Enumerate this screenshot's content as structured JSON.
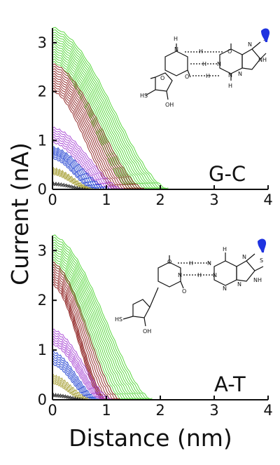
{
  "chart_data": [
    {
      "type": "line",
      "panel_label": "G-C",
      "xlim": [
        0,
        4
      ],
      "ylim": [
        0,
        3.3
      ],
      "xticks": [
        "0",
        "1",
        "2",
        "3",
        "4"
      ],
      "yticks": [
        "0",
        "1",
        "2",
        "3"
      ],
      "grid": false,
      "series": [
        {
          "color": "#4ad52e",
          "start_values": [
            3.3,
            3.25,
            3.2,
            3.15,
            3.1,
            3.05,
            3.0,
            2.95,
            2.9,
            2.85,
            2.8,
            2.75,
            2.7,
            2.65,
            2.6
          ],
          "end_x": [
            2.15,
            2.1,
            2.05,
            2.0,
            1.95,
            1.9,
            1.85,
            1.8,
            1.75,
            1.7,
            1.65,
            1.6,
            1.55,
            1.5,
            1.45
          ]
        },
        {
          "color": "#8b1a1a",
          "start_values": [
            2.55,
            2.5,
            2.45,
            2.4,
            2.35,
            2.3,
            2.25,
            2.2,
            2.15,
            2.1,
            2.05,
            2.0
          ],
          "end_x": [
            1.7,
            1.65,
            1.6,
            1.55,
            1.5,
            1.45,
            1.4,
            1.35,
            1.3,
            1.25,
            1.2,
            1.15
          ]
        },
        {
          "color": "#a642d4",
          "start_values": [
            1.25,
            1.2,
            1.15,
            1.1,
            1.05,
            1.0,
            0.95
          ],
          "end_x": [
            1.3,
            1.25,
            1.2,
            1.15,
            1.1,
            1.05,
            1.0
          ]
        },
        {
          "color": "#1e3fd0",
          "start_values": [
            0.85,
            0.82,
            0.79,
            0.76,
            0.73,
            0.7,
            0.66,
            0.62
          ],
          "end_x": [
            1.05,
            1.0,
            0.95,
            0.9,
            0.85,
            0.82,
            0.78,
            0.75
          ]
        },
        {
          "color": "#a9a23a",
          "start_values": [
            0.42,
            0.39,
            0.36,
            0.33,
            0.3
          ],
          "end_x": [
            0.75,
            0.72,
            0.69,
            0.66,
            0.63
          ]
        },
        {
          "color": "#333333",
          "start_values": [
            0.12,
            0.1,
            0.08
          ],
          "end_x": [
            0.65,
            0.6,
            0.55
          ]
        }
      ]
    },
    {
      "type": "line",
      "panel_label": "A-T",
      "xlim": [
        0,
        4
      ],
      "ylim": [
        0,
        3.3
      ],
      "xticks": [
        "0",
        "1",
        "2",
        "3",
        "4"
      ],
      "yticks": [
        "0",
        "1",
        "2",
        "3"
      ],
      "grid": false,
      "series": [
        {
          "color": "#4ad52e",
          "start_values": [
            3.3,
            3.25,
            3.2,
            3.15,
            3.1,
            3.05,
            3.0,
            2.95,
            2.9,
            2.85,
            2.8,
            2.75,
            2.7
          ],
          "end_x": [
            1.85,
            1.8,
            1.75,
            1.7,
            1.65,
            1.6,
            1.55,
            1.5,
            1.45,
            1.4,
            1.35,
            1.3,
            1.25
          ]
        },
        {
          "color": "#8b1a1a",
          "start_values": [
            2.75,
            2.7,
            2.65,
            2.6,
            2.55,
            2.5,
            2.45,
            2.4,
            2.35,
            2.3
          ],
          "end_x": [
            1.25,
            1.2,
            1.15,
            1.1,
            1.05,
            1.0,
            0.98,
            0.96,
            0.94,
            0.92
          ]
        },
        {
          "color": "#a642d4",
          "start_values": [
            1.4,
            1.35,
            1.3,
            1.25,
            1.2,
            1.15,
            1.1
          ],
          "end_x": [
            1.1,
            1.05,
            1.0,
            0.97,
            0.94,
            0.91,
            0.88
          ]
        },
        {
          "color": "#1e3fd0",
          "start_values": [
            0.95,
            0.9,
            0.85,
            0.8,
            0.75,
            0.7
          ],
          "end_x": [
            0.85,
            0.82,
            0.79,
            0.76,
            0.73,
            0.7
          ]
        },
        {
          "color": "#a9a23a",
          "start_values": [
            0.48,
            0.44,
            0.4,
            0.36,
            0.32
          ],
          "end_x": [
            0.7,
            0.66,
            0.62,
            0.58,
            0.55
          ]
        },
        {
          "color": "#333333",
          "start_values": [
            0.1,
            0.08,
            0.06
          ],
          "end_x": [
            0.6,
            0.55,
            0.5
          ]
        }
      ]
    }
  ],
  "ylabel": "Current (nA)",
  "xlabel": "Distance (nm)",
  "molecules": {
    "gc_atoms": [
      "H",
      "N",
      "H",
      "O",
      "N",
      "S",
      "N",
      "H",
      "N",
      "NH",
      "N",
      "O",
      "H",
      "N",
      "N",
      "H",
      "O",
      "HS",
      "OH"
    ],
    "at_atoms": [
      "H",
      "O",
      "H",
      "N",
      "S",
      "N",
      "N",
      "H",
      "N",
      "NH",
      "N",
      "N",
      "O",
      "HS",
      "OH"
    ]
  }
}
